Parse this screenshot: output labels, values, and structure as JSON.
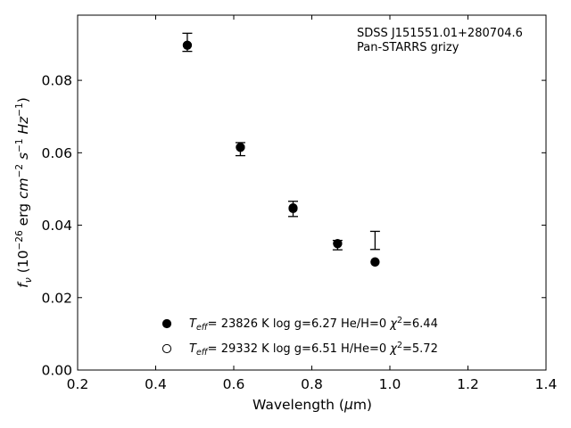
{
  "chart_data": {
    "type": "scatter",
    "xlabel": "Wavelength (μm)",
    "ylabel": "fν (10⁻²⁶ erg cm⁻² s⁻¹ Hz⁻¹)",
    "xlim": [
      0.2,
      1.4
    ],
    "ylim": [
      0.0,
      0.098
    ],
    "xticks": [
      "0.2",
      "0.4",
      "0.6",
      "0.8",
      "1.0",
      "1.2",
      "1.4"
    ],
    "yticks": [
      "0.00",
      "0.02",
      "0.04",
      "0.06",
      "0.08"
    ],
    "annotation": [
      "SDSS J151551.01+280704.6",
      "Pan-STARRS grizy"
    ],
    "observed": {
      "x": [
        0.481,
        0.617,
        0.752,
        0.866,
        0.962
      ],
      "y": [
        0.0905,
        0.061,
        0.0445,
        0.0345,
        0.0358
      ],
      "yerr": [
        0.0025,
        0.0018,
        0.0021,
        0.0013,
        0.0025
      ]
    },
    "series": [
      {
        "label": "T_eff= 23826 K  log g=6.27  He/H=0  χ²=6.44",
        "marker": "filled",
        "x": [
          0.481,
          0.617,
          0.752,
          0.866,
          0.962
        ],
        "y": [
          0.0897,
          0.0615,
          0.0448,
          0.0349,
          0.0298
        ]
      },
      {
        "label": "T_eff= 29332 K  log g=6.51  H/He=0  χ²=5.72",
        "marker": "open",
        "x": [
          0.481,
          0.617,
          0.752,
          0.866,
          0.962
        ],
        "y": [
          0.0897,
          0.0615,
          0.0446,
          0.0349,
          0.0299
        ]
      }
    ],
    "legend_entries": [
      {
        "marker": "filled",
        "teff": "23826 K",
        "rest": "log g=6.27  He/H=0",
        "chi": "6.44"
      },
      {
        "marker": "open",
        "teff": "29332 K",
        "rest": "log g=6.51  H/He=0",
        "chi": "5.72"
      }
    ],
    "legend_position": "lower-center",
    "grid": false,
    "colors": {
      "marker": "#000000",
      "axis": "#000000",
      "background": "#ffffff"
    }
  }
}
